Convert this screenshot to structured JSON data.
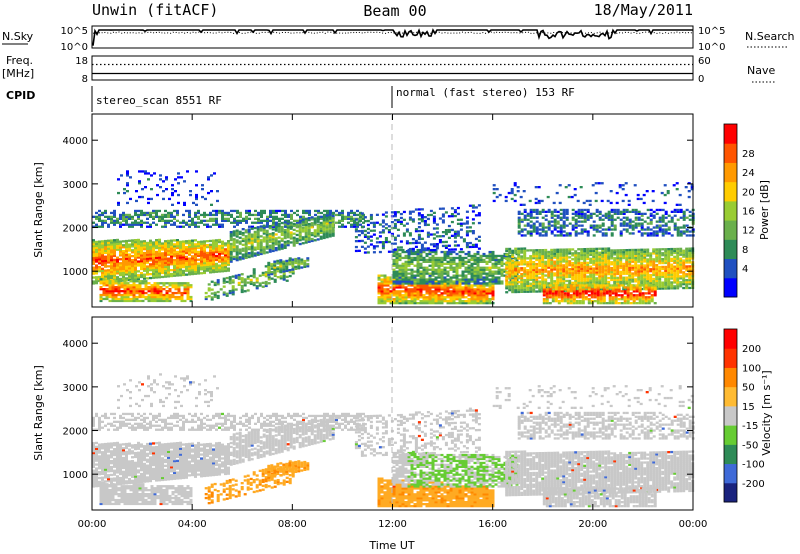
{
  "header": {
    "station": "Unwin (fitACF)",
    "beam": "Beam 00",
    "date": "18/May/2011"
  },
  "chart_data": [
    {
      "type": "line",
      "name": "noise-panel",
      "left_label": "N.Sky",
      "right_label": "N.Search",
      "left_ticks": [
        "10^5",
        "10^0"
      ],
      "right_ticks": [
        "10^5",
        "10^0"
      ],
      "yscale": "log",
      "ylim_log10": [
        0,
        5
      ],
      "series": [
        {
          "values_log10_start": 4.6
        },
        {
          "values_log10_start": 4.4
        }
      ]
    },
    {
      "type": "line",
      "name": "freq-panel",
      "left_label": "Freq.",
      "left_unit": "[MHz]",
      "right_label": "Nave",
      "left_ticks": [
        "18",
        "8"
      ],
      "right_ticks": [
        "60",
        "0"
      ],
      "freq_mhz": 10.5,
      "nave": 45
    },
    {
      "type": "table",
      "name": "cpid-panel",
      "label": "CPID",
      "segments": [
        {
          "text": "stereo_scan 8551 RF",
          "start_h": 0,
          "end_h": 12
        },
        {
          "text": "normal (fast stereo) 153 RF",
          "start_h": 12,
          "end_h": 24
        }
      ]
    },
    {
      "type": "heatmap",
      "name": "power-panel",
      "ylabel": "Slant Range [km]",
      "ylim": [
        180,
        4600
      ],
      "yticks": [
        "1000",
        "2000",
        "3000",
        "4000"
      ],
      "colorbar_label": "Power [dB]",
      "colorbar_ticks": [
        "4",
        "8",
        "12",
        "16",
        "20",
        "24",
        "28"
      ],
      "colorbar_colors": [
        "#0000ff",
        "#2050c0",
        "#2e8b57",
        "#6ab04c",
        "#99cc33",
        "#ffcc00",
        "#ff9900",
        "#ff5500",
        "#ff0000"
      ]
    },
    {
      "type": "heatmap",
      "name": "velocity-panel",
      "ylabel": "Slant Range [km]",
      "xlabel": "Time UT",
      "ylim": [
        180,
        4600
      ],
      "yticks": [
        "1000",
        "2000",
        "3000",
        "4000"
      ],
      "xticks": [
        "00:00",
        "04:00",
        "08:00",
        "12:00",
        "16:00",
        "20:00",
        "00:00"
      ],
      "colorbar_label": "Velocity [m s⁻¹]",
      "colorbar_ticks": [
        "200",
        "100",
        "50",
        "15",
        "-15",
        "-50",
        "-100",
        "-200"
      ],
      "colorbar_colors": [
        "#1a237e",
        "#3f6ad8",
        "#2e8b57",
        "#66cc33",
        "#c8c8c8",
        "#ffbb33",
        "#ff8800",
        "#ff3300",
        "#ff0000"
      ]
    }
  ]
}
